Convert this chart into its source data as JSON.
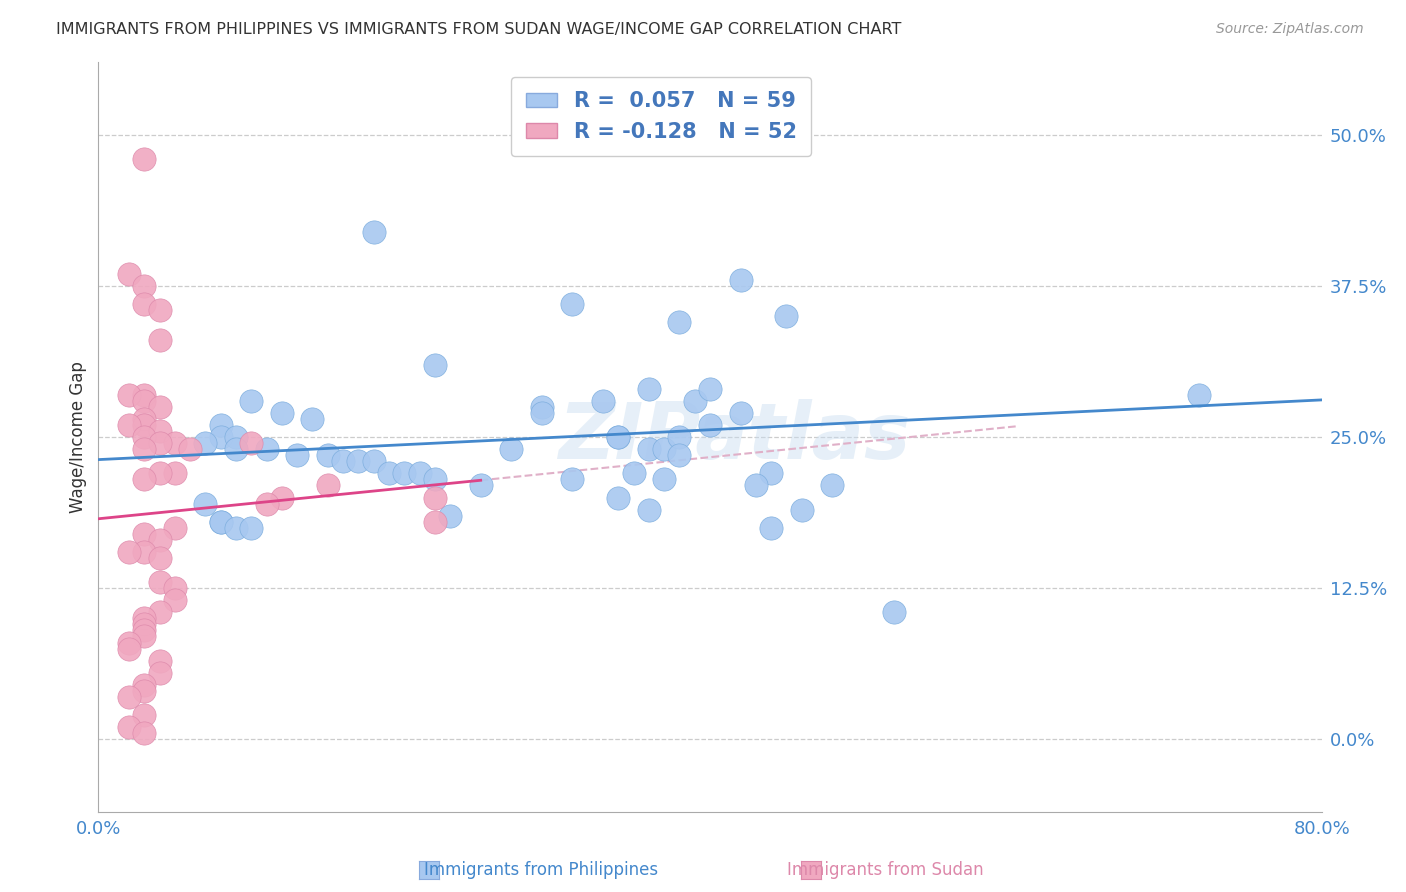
{
  "title": "IMMIGRANTS FROM PHILIPPINES VS IMMIGRANTS FROM SUDAN WAGE/INCOME GAP CORRELATION CHART",
  "source": "Source: ZipAtlas.com",
  "ylabel": "Wage/Income Gap",
  "ytick_values": [
    0.0,
    0.125,
    0.25,
    0.375,
    0.5
  ],
  "xlim": [
    0.0,
    0.8
  ],
  "ylim": [
    -0.06,
    0.56
  ],
  "r_philippines": 0.057,
  "n_philippines": 59,
  "r_sudan": -0.128,
  "n_sudan": 52,
  "color_philippines": "#a8c8f0",
  "color_sudan": "#f0a8c0",
  "line_color_philippines": "#4488cc",
  "line_color_sudan": "#dd4488",
  "watermark": "ZIPatlas",
  "legend_text_color": "#4477bb",
  "philippines_x": [
    0.38,
    0.18,
    0.22,
    0.29,
    0.38,
    0.42,
    0.45,
    0.08,
    0.1,
    0.12,
    0.14,
    0.08,
    0.09,
    0.11,
    0.07,
    0.09,
    0.13,
    0.15,
    0.16,
    0.17,
    0.18,
    0.19,
    0.2,
    0.21,
    0.22,
    0.08,
    0.07,
    0.08,
    0.09,
    0.1,
    0.31,
    0.33,
    0.36,
    0.39,
    0.36,
    0.34,
    0.37,
    0.27,
    0.34,
    0.38,
    0.42,
    0.38,
    0.44,
    0.48,
    0.72,
    0.31,
    0.35,
    0.34,
    0.36,
    0.43,
    0.37,
    0.46,
    0.52,
    0.4,
    0.4,
    0.29,
    0.23,
    0.44,
    0.25
  ],
  "philippines_y": [
    0.5,
    0.42,
    0.31,
    0.275,
    0.345,
    0.38,
    0.35,
    0.26,
    0.28,
    0.27,
    0.265,
    0.25,
    0.25,
    0.24,
    0.245,
    0.24,
    0.235,
    0.235,
    0.23,
    0.23,
    0.23,
    0.22,
    0.22,
    0.22,
    0.215,
    0.18,
    0.195,
    0.18,
    0.175,
    0.175,
    0.36,
    0.28,
    0.29,
    0.28,
    0.24,
    0.25,
    0.24,
    0.24,
    0.25,
    0.25,
    0.27,
    0.235,
    0.22,
    0.21,
    0.285,
    0.215,
    0.22,
    0.2,
    0.19,
    0.21,
    0.215,
    0.19,
    0.105,
    0.26,
    0.29,
    0.27,
    0.185,
    0.175,
    0.21
  ],
  "sudan_x": [
    0.03,
    0.02,
    0.03,
    0.03,
    0.04,
    0.04,
    0.03,
    0.02,
    0.03,
    0.04,
    0.03,
    0.03,
    0.02,
    0.04,
    0.03,
    0.05,
    0.04,
    0.03,
    0.1,
    0.06,
    0.05,
    0.04,
    0.03,
    0.15,
    0.12,
    0.11,
    0.22,
    0.22,
    0.05,
    0.03,
    0.04,
    0.03,
    0.02,
    0.04,
    0.04,
    0.05,
    0.05,
    0.04,
    0.03,
    0.03,
    0.03,
    0.03,
    0.02,
    0.02,
    0.04,
    0.04,
    0.03,
    0.03,
    0.02,
    0.03,
    0.02,
    0.03
  ],
  "sudan_y": [
    0.48,
    0.385,
    0.375,
    0.36,
    0.355,
    0.33,
    0.285,
    0.285,
    0.28,
    0.275,
    0.265,
    0.26,
    0.26,
    0.255,
    0.25,
    0.245,
    0.245,
    0.24,
    0.245,
    0.24,
    0.22,
    0.22,
    0.215,
    0.21,
    0.2,
    0.195,
    0.2,
    0.18,
    0.175,
    0.17,
    0.165,
    0.155,
    0.155,
    0.15,
    0.13,
    0.125,
    0.115,
    0.105,
    0.1,
    0.095,
    0.09,
    0.085,
    0.08,
    0.075,
    0.065,
    0.055,
    0.045,
    0.04,
    0.035,
    0.02,
    0.01,
    0.005
  ],
  "sudan_line_solid_end": 0.25,
  "sudan_line_dash_end": 0.6
}
